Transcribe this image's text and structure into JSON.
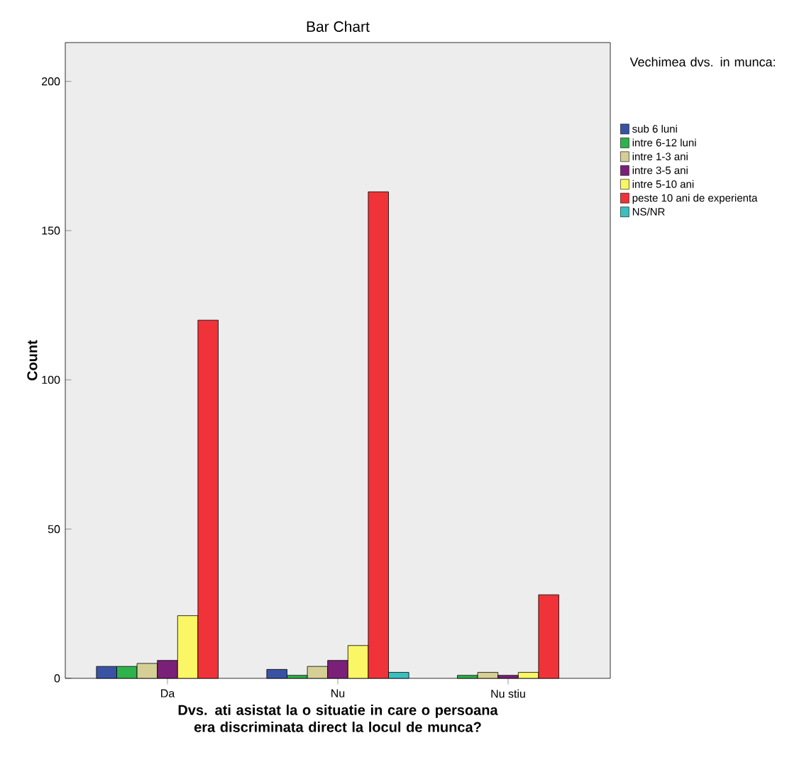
{
  "chart_data": {
    "type": "bar",
    "title": "Bar Chart",
    "xlabel": "Dvs. ati asistat la o situatie in care o persoana era discriminata direct la locul de munca?",
    "ylabel": "Count",
    "legend_title": "Vechimea dvs. in munca:",
    "categories": [
      "Da",
      "Nu",
      "Nu stiu"
    ],
    "ylim": [
      0,
      213
    ],
    "yticks": [
      0,
      50,
      100,
      150,
      200
    ],
    "legend": "right",
    "grid": false,
    "series": [
      {
        "name": "sub 6 luni",
        "color": "#3953a4",
        "values": [
          4,
          3,
          null
        ]
      },
      {
        "name": "intre 6-12 luni",
        "color": "#2eb24b",
        "values": [
          4,
          1,
          1
        ]
      },
      {
        "name": "intre 1-3 ani",
        "color": "#d6cf95",
        "values": [
          5,
          4,
          2
        ]
      },
      {
        "name": "intre 3-5 ani",
        "color": "#7b2079",
        "values": [
          6,
          6,
          1
        ]
      },
      {
        "name": "intre 5-10 ani",
        "color": "#fbf665",
        "values": [
          21,
          11,
          2
        ]
      },
      {
        "name": "peste 10 ani de experienta",
        "color": "#ef3338",
        "values": [
          120,
          163,
          28
        ]
      },
      {
        "name": "NS/NR",
        "color": "#3bbfbf",
        "values": [
          null,
          2,
          null
        ]
      }
    ]
  }
}
